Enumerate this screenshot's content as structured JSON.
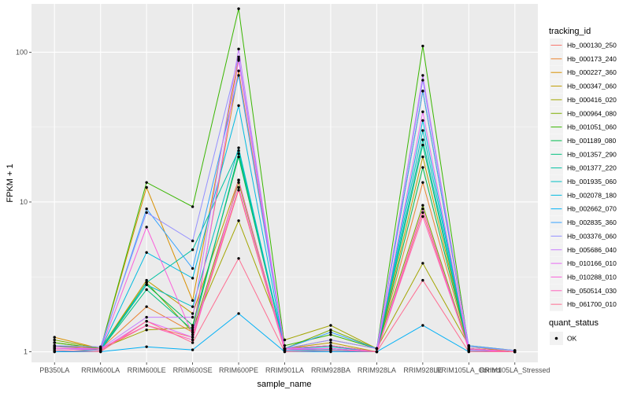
{
  "chart_data": {
    "type": "line",
    "xlabel": "sample_name",
    "ylabel": "FPKM + 1",
    "y_scale": "log10",
    "ylim": [
      0.85,
      210
    ],
    "y_ticks": [
      1,
      10,
      100
    ],
    "y_tick_labels": [
      "1",
      "10",
      "100"
    ],
    "grid": true,
    "legend_position": "right",
    "legend_title": "tracking_id",
    "legend2_title": "quant_status",
    "legend2_items": [
      "OK"
    ],
    "categories": [
      "PB350LA",
      "RRIM600LA",
      "RRIM600LE",
      "RRIM600SE",
      "RRIM600PE",
      "RRIM901LA",
      "RRIM928BA",
      "RRIM928LA",
      "RRIM928LE",
      "RRIM105LA_Control",
      "RRIM105LA_Stressed"
    ],
    "series": [
      {
        "name": "Hb_000130_250",
        "color": "#F8766D",
        "values": [
          1.05,
          1.02,
          1.5,
          1.25,
          12.0,
          1.02,
          1.05,
          1.0,
          8.5,
          1.05,
          1.0
        ]
      },
      {
        "name": "Hb_000173_240",
        "color": "#EA8331",
        "values": [
          1.1,
          1.05,
          2.0,
          1.35,
          75.0,
          1.05,
          1.1,
          1.0,
          13.5,
          1.05,
          1.0
        ]
      },
      {
        "name": "Hb_000227_360",
        "color": "#D89000",
        "values": [
          1.25,
          1.05,
          12.5,
          2.2,
          90.0,
          1.05,
          1.2,
          1.05,
          55.0,
          1.08,
          1.0
        ]
      },
      {
        "name": "Hb_000347_060",
        "color": "#C09B00",
        "values": [
          1.15,
          1.05,
          3.0,
          1.8,
          14.0,
          1.05,
          1.15,
          1.0,
          20.0,
          1.05,
          1.0
        ]
      },
      {
        "name": "Hb_000416_020",
        "color": "#A3A500",
        "values": [
          1.1,
          1.05,
          1.4,
          1.45,
          7.5,
          1.2,
          1.5,
          1.05,
          3.9,
          1.1,
          1.02
        ]
      },
      {
        "name": "Hb_000964_080",
        "color": "#7CAE00",
        "values": [
          1.2,
          1.05,
          2.9,
          1.35,
          13.5,
          1.05,
          1.4,
          1.05,
          9.5,
          1.05,
          1.0
        ]
      },
      {
        "name": "Hb_001051_060",
        "color": "#39B600",
        "values": [
          1.15,
          1.05,
          13.5,
          9.3,
          195.0,
          1.1,
          1.3,
          1.05,
          110.0,
          1.05,
          1.0
        ]
      },
      {
        "name": "Hb_001189_080",
        "color": "#00BB4E",
        "values": [
          1.1,
          1.03,
          2.8,
          1.5,
          20.0,
          1.05,
          1.1,
          1.0,
          17.0,
          1.05,
          1.0
        ]
      },
      {
        "name": "Hb_001357_290",
        "color": "#00BF7D",
        "values": [
          1.05,
          1.03,
          2.6,
          1.4,
          21.0,
          1.03,
          1.05,
          1.0,
          24.0,
          1.03,
          1.0
        ]
      },
      {
        "name": "Hb_001377_220",
        "color": "#00C1A3",
        "values": [
          1.05,
          1.03,
          2.9,
          4.8,
          22.0,
          1.03,
          1.05,
          1.0,
          26.0,
          1.03,
          1.0
        ]
      },
      {
        "name": "Hb_001935_060",
        "color": "#00BFC4",
        "values": [
          1.08,
          1.05,
          2.8,
          2.0,
          23.0,
          1.05,
          1.08,
          1.0,
          30.0,
          1.05,
          1.0
        ]
      },
      {
        "name": "Hb_002078_180",
        "color": "#00BAE0",
        "values": [
          1.0,
          1.03,
          4.6,
          3.1,
          44.0,
          1.02,
          1.03,
          1.0,
          35.0,
          1.02,
          1.0
        ]
      },
      {
        "name": "Hb_002662_070",
        "color": "#00B0F6",
        "values": [
          1.0,
          1.0,
          1.08,
          1.03,
          1.8,
          1.0,
          1.0,
          1.0,
          1.5,
          1.0,
          1.0
        ]
      },
      {
        "name": "Hb_002835_360",
        "color": "#35A2FF",
        "values": [
          1.05,
          1.05,
          9.0,
          3.6,
          70.0,
          1.05,
          1.35,
          1.05,
          55.0,
          1.1,
          1.02
        ]
      },
      {
        "name": "Hb_003376_060",
        "color": "#9590FF",
        "values": [
          1.1,
          1.08,
          8.5,
          5.5,
          93.0,
          1.05,
          1.2,
          1.05,
          65.0,
          1.08,
          1.02
        ]
      },
      {
        "name": "Hb_005686_040",
        "color": "#C77CFF",
        "values": [
          1.05,
          1.05,
          1.7,
          1.7,
          105.0,
          1.05,
          1.05,
          1.0,
          70.0,
          1.05,
          1.0
        ]
      },
      {
        "name": "Hb_010166_010",
        "color": "#E76BF3",
        "values": [
          1.05,
          1.03,
          1.6,
          1.25,
          88.0,
          1.03,
          1.05,
          1.0,
          40.0,
          1.03,
          1.0
        ]
      },
      {
        "name": "Hb_010288_010",
        "color": "#FA62DB",
        "values": [
          1.05,
          1.03,
          6.8,
          1.3,
          12.5,
          1.03,
          1.05,
          1.0,
          9.0,
          1.03,
          1.0
        ]
      },
      {
        "name": "Hb_050514_030",
        "color": "#FF62BC",
        "values": [
          1.08,
          1.05,
          1.5,
          1.2,
          14.0,
          1.05,
          1.1,
          1.0,
          8.0,
          1.05,
          1.0
        ]
      },
      {
        "name": "Hb_061700_010",
        "color": "#FF6C91",
        "values": [
          1.02,
          1.0,
          1.6,
          1.15,
          4.2,
          1.0,
          1.02,
          1.0,
          3.0,
          1.0,
          1.0
        ]
      }
    ]
  }
}
